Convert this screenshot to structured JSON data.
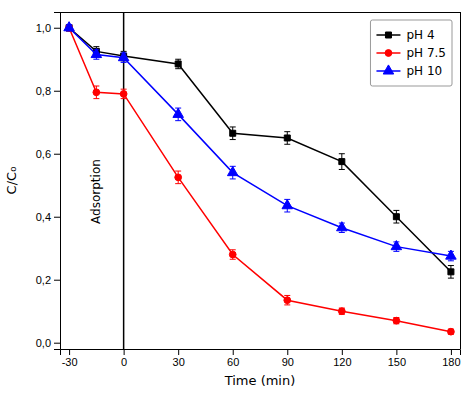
{
  "chart_data": {
    "type": "line",
    "xlabel": "Time (min)",
    "ylabel": "C/C₀",
    "x": [
      -30,
      -15,
      0,
      30,
      60,
      90,
      120,
      150,
      180
    ],
    "series": [
      {
        "name": "pH 4",
        "color": "#000000",
        "marker": "square",
        "values": [
          1.0,
          0.925,
          0.91,
          0.885,
          0.665,
          0.65,
          0.575,
          0.4,
          0.225
        ],
        "errors": [
          0.01,
          0.015,
          0.015,
          0.015,
          0.02,
          0.02,
          0.025,
          0.02,
          0.02
        ]
      },
      {
        "name": "pH 7.5",
        "color": "#ff0000",
        "marker": "circle",
        "values": [
          1.0,
          0.795,
          0.79,
          0.525,
          0.28,
          0.135,
          0.1,
          0.07,
          0.035
        ],
        "errors": [
          0.01,
          0.02,
          0.015,
          0.02,
          0.015,
          0.015,
          0.01,
          0.01,
          0.008
        ]
      },
      {
        "name": "pH 10",
        "color": "#0000ff",
        "marker": "triangle",
        "values": [
          1.0,
          0.915,
          0.905,
          0.725,
          0.54,
          0.435,
          0.365,
          0.305,
          0.275
        ],
        "errors": [
          0.01,
          0.015,
          0.015,
          0.02,
          0.02,
          0.02,
          0.015,
          0.015,
          0.015
        ]
      }
    ],
    "xlim": [
      -35,
      185
    ],
    "ylim": [
      -0.02,
      1.05
    ],
    "xticks": [
      -30,
      0,
      30,
      60,
      90,
      120,
      150,
      180
    ],
    "yticks": [
      {
        "value": 0.0,
        "label": "0,0"
      },
      {
        "value": 0.2,
        "label": "0,2"
      },
      {
        "value": 0.4,
        "label": "0,4"
      },
      {
        "value": 0.6,
        "label": "0,6"
      },
      {
        "value": 0.8,
        "label": "0,8"
      },
      {
        "value": 1.0,
        "label": "1,0"
      }
    ],
    "vlines": [
      0
    ],
    "annotations": [
      {
        "text": "Adsorption",
        "x": -15,
        "y": 0.48
      }
    ],
    "legend": "upper right",
    "grid": false
  }
}
